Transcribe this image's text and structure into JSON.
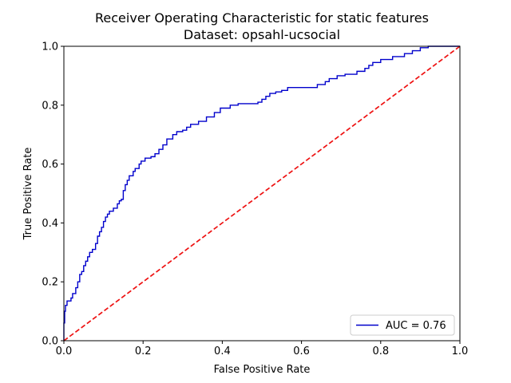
{
  "chart_data": {
    "type": "line",
    "title": "Receiver Operating Characteristic for static features",
    "subtitle": "Dataset: opsahl-ucsocial",
    "xlabel": "False Positive Rate",
    "ylabel": "True Positive Rate",
    "xlim": [
      0,
      1
    ],
    "ylim": [
      0,
      1
    ],
    "xticks": [
      "0.0",
      "0.2",
      "0.4",
      "0.6",
      "0.8",
      "1.0"
    ],
    "yticks": [
      "0.0",
      "0.2",
      "0.4",
      "0.6",
      "0.8",
      "1.0"
    ],
    "grid": false,
    "legend_position": "lower-right",
    "legend": [
      "AUC = 0.76"
    ],
    "series": [
      {
        "name": "AUC = 0.76",
        "color": "#0000cc",
        "style": "step",
        "points": [
          [
            0.0,
            0.0
          ],
          [
            0.0,
            0.06
          ],
          [
            0.002,
            0.06
          ],
          [
            0.002,
            0.1
          ],
          [
            0.004,
            0.1
          ],
          [
            0.004,
            0.12
          ],
          [
            0.008,
            0.12
          ],
          [
            0.008,
            0.135
          ],
          [
            0.018,
            0.135
          ],
          [
            0.018,
            0.145
          ],
          [
            0.022,
            0.145
          ],
          [
            0.022,
            0.16
          ],
          [
            0.03,
            0.16
          ],
          [
            0.03,
            0.18
          ],
          [
            0.035,
            0.18
          ],
          [
            0.035,
            0.2
          ],
          [
            0.04,
            0.2
          ],
          [
            0.04,
            0.225
          ],
          [
            0.045,
            0.225
          ],
          [
            0.045,
            0.235
          ],
          [
            0.05,
            0.235
          ],
          [
            0.05,
            0.255
          ],
          [
            0.055,
            0.255
          ],
          [
            0.055,
            0.27
          ],
          [
            0.06,
            0.27
          ],
          [
            0.06,
            0.285
          ],
          [
            0.065,
            0.285
          ],
          [
            0.065,
            0.3
          ],
          [
            0.072,
            0.3
          ],
          [
            0.072,
            0.31
          ],
          [
            0.08,
            0.31
          ],
          [
            0.08,
            0.33
          ],
          [
            0.085,
            0.33
          ],
          [
            0.085,
            0.355
          ],
          [
            0.09,
            0.355
          ],
          [
            0.09,
            0.37
          ],
          [
            0.095,
            0.37
          ],
          [
            0.095,
            0.385
          ],
          [
            0.1,
            0.385
          ],
          [
            0.1,
            0.405
          ],
          [
            0.105,
            0.405
          ],
          [
            0.105,
            0.42
          ],
          [
            0.11,
            0.42
          ],
          [
            0.11,
            0.43
          ],
          [
            0.115,
            0.43
          ],
          [
            0.115,
            0.44
          ],
          [
            0.125,
            0.44
          ],
          [
            0.125,
            0.45
          ],
          [
            0.135,
            0.45
          ],
          [
            0.135,
            0.465
          ],
          [
            0.14,
            0.465
          ],
          [
            0.14,
            0.475
          ],
          [
            0.145,
            0.475
          ],
          [
            0.145,
            0.48
          ],
          [
            0.15,
            0.48
          ],
          [
            0.15,
            0.51
          ],
          [
            0.155,
            0.51
          ],
          [
            0.155,
            0.53
          ],
          [
            0.16,
            0.53
          ],
          [
            0.16,
            0.545
          ],
          [
            0.165,
            0.545
          ],
          [
            0.165,
            0.56
          ],
          [
            0.175,
            0.56
          ],
          [
            0.175,
            0.575
          ],
          [
            0.18,
            0.575
          ],
          [
            0.18,
            0.585
          ],
          [
            0.19,
            0.585
          ],
          [
            0.19,
            0.6
          ],
          [
            0.195,
            0.6
          ],
          [
            0.195,
            0.61
          ],
          [
            0.205,
            0.61
          ],
          [
            0.205,
            0.62
          ],
          [
            0.22,
            0.62
          ],
          [
            0.22,
            0.625
          ],
          [
            0.23,
            0.625
          ],
          [
            0.23,
            0.635
          ],
          [
            0.24,
            0.635
          ],
          [
            0.24,
            0.65
          ],
          [
            0.25,
            0.65
          ],
          [
            0.25,
            0.665
          ],
          [
            0.26,
            0.665
          ],
          [
            0.26,
            0.685
          ],
          [
            0.275,
            0.685
          ],
          [
            0.275,
            0.7
          ],
          [
            0.285,
            0.7
          ],
          [
            0.285,
            0.71
          ],
          [
            0.3,
            0.71
          ],
          [
            0.3,
            0.715
          ],
          [
            0.31,
            0.715
          ],
          [
            0.31,
            0.725
          ],
          [
            0.32,
            0.725
          ],
          [
            0.32,
            0.735
          ],
          [
            0.34,
            0.735
          ],
          [
            0.34,
            0.745
          ],
          [
            0.36,
            0.745
          ],
          [
            0.36,
            0.76
          ],
          [
            0.38,
            0.76
          ],
          [
            0.38,
            0.775
          ],
          [
            0.395,
            0.775
          ],
          [
            0.395,
            0.79
          ],
          [
            0.42,
            0.79
          ],
          [
            0.42,
            0.8
          ],
          [
            0.44,
            0.8
          ],
          [
            0.44,
            0.805
          ],
          [
            0.49,
            0.805
          ],
          [
            0.49,
            0.81
          ],
          [
            0.5,
            0.81
          ],
          [
            0.5,
            0.82
          ],
          [
            0.51,
            0.82
          ],
          [
            0.51,
            0.83
          ],
          [
            0.52,
            0.83
          ],
          [
            0.52,
            0.84
          ],
          [
            0.535,
            0.84
          ],
          [
            0.535,
            0.845
          ],
          [
            0.55,
            0.845
          ],
          [
            0.55,
            0.85
          ],
          [
            0.565,
            0.85
          ],
          [
            0.565,
            0.86
          ],
          [
            0.64,
            0.86
          ],
          [
            0.64,
            0.87
          ],
          [
            0.66,
            0.87
          ],
          [
            0.66,
            0.88
          ],
          [
            0.67,
            0.88
          ],
          [
            0.67,
            0.89
          ],
          [
            0.69,
            0.89
          ],
          [
            0.69,
            0.9
          ],
          [
            0.71,
            0.9
          ],
          [
            0.71,
            0.905
          ],
          [
            0.74,
            0.905
          ],
          [
            0.74,
            0.915
          ],
          [
            0.76,
            0.915
          ],
          [
            0.76,
            0.925
          ],
          [
            0.77,
            0.925
          ],
          [
            0.77,
            0.935
          ],
          [
            0.78,
            0.935
          ],
          [
            0.78,
            0.945
          ],
          [
            0.8,
            0.945
          ],
          [
            0.8,
            0.955
          ],
          [
            0.83,
            0.955
          ],
          [
            0.83,
            0.965
          ],
          [
            0.86,
            0.965
          ],
          [
            0.86,
            0.975
          ],
          [
            0.88,
            0.975
          ],
          [
            0.88,
            0.985
          ],
          [
            0.9,
            0.985
          ],
          [
            0.9,
            0.995
          ],
          [
            0.92,
            0.995
          ],
          [
            0.92,
            1.0
          ],
          [
            1.0,
            1.0
          ]
        ]
      },
      {
        "name": "",
        "color": "#ee1111",
        "style": "dashed",
        "points": [
          [
            0,
            0
          ],
          [
            1,
            1
          ]
        ]
      }
    ]
  }
}
